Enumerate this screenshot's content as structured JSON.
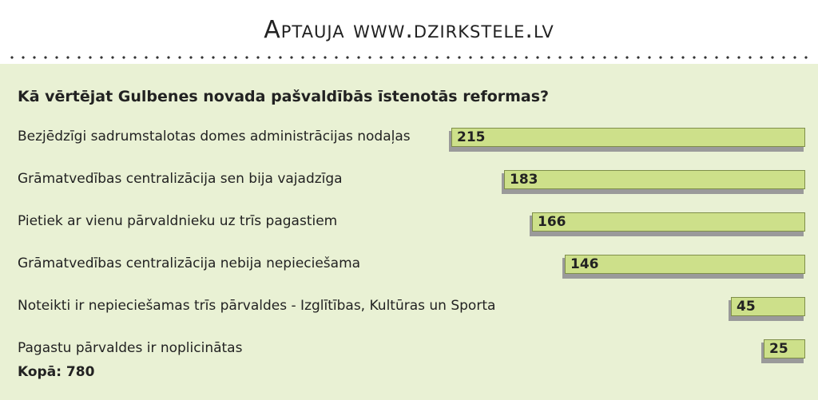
{
  "header": {
    "title": "Aptauja www.dzirkstele.lv"
  },
  "chart_data": {
    "type": "bar",
    "orientation": "horizontal",
    "title": "Kā vērtējat Gulbenes novada pašvaldībās īstenotās reformas?",
    "categories": [
      "Bezjēdzīgi sadrumstalotas domes administrācijas nodaļas",
      "Grāmatvedības centralizācija sen bija vajadzīga",
      "Pietiek ar vienu pārvaldnieku uz trīs pagastiem",
      "Grāmatvedības centralizācija nebija nepieciešama",
      "Noteikti ir nepieciešamas trīs pārvaldes - Izglītības, Kultūras un Sporta",
      "Pagastu pārvaldes ir noplicinātas"
    ],
    "values": [
      215,
      183,
      166,
      146,
      45,
      25
    ],
    "value_labels": [
      "215",
      "183",
      "166",
      "146",
      "45",
      "25"
    ],
    "bar_alignment": "right",
    "total_label": "Kopā: 780",
    "colors": {
      "bar_fill": "#cde08a",
      "bar_border": "#7f8f4a",
      "shadow": "#9a9a9a",
      "panel": "#e9f1d4"
    }
  }
}
